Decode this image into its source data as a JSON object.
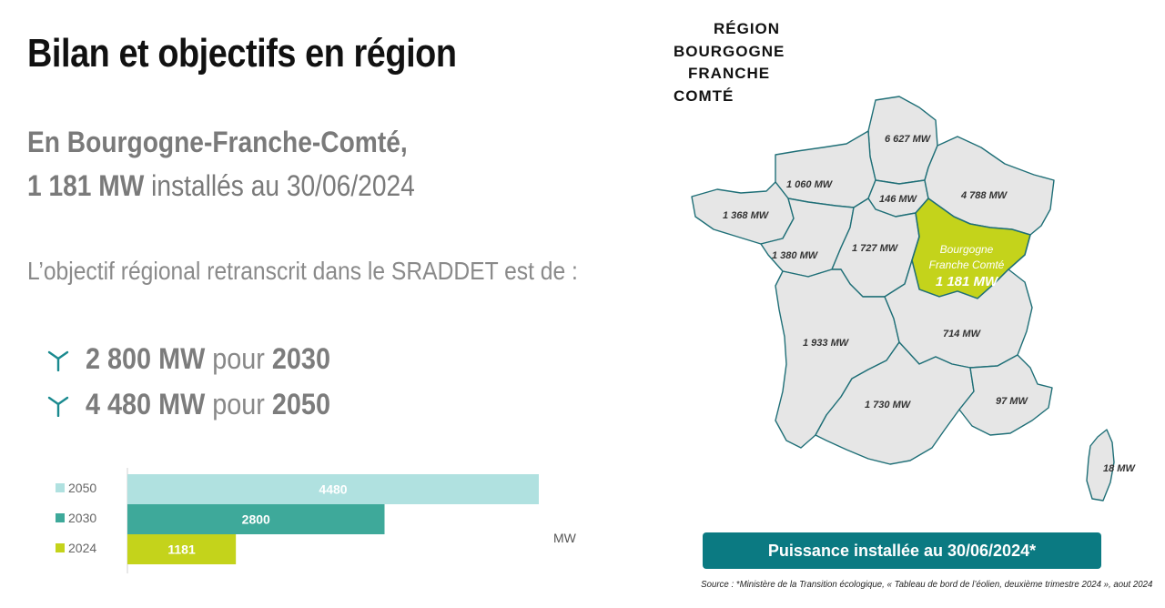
{
  "title": "Bilan et objectifs en région",
  "summary": {
    "line1": "En Bourgogne-Franche-Comté,",
    "installed": "1 181 MW",
    "line2_rest": " installés au 30/06/2024"
  },
  "objective_label": "L’objectif régional retranscrit dans le SRADDET est de :",
  "targets": [
    {
      "value": "2 800 MW",
      "connector": " pour ",
      "year": "2030",
      "icon": "wind-turbine-icon"
    },
    {
      "value": "4 480 MW",
      "connector": " pour ",
      "year": "2050",
      "icon": "wind-turbine-icon"
    }
  ],
  "logo": {
    "lines": [
      "RÉGION",
      "BOURGOGNE",
      "FRANCHE",
      "COMTÉ"
    ],
    "accent": "#f2c500"
  },
  "chart_data": {
    "type": "bar",
    "orientation": "horizontal",
    "categories": [
      "2050",
      "2030",
      "2024"
    ],
    "values": [
      4480,
      2800,
      1181
    ],
    "data_labels": [
      "4480",
      "2800",
      "1181"
    ],
    "colors": [
      "#b0e1e0",
      "#3ea99a",
      "#c4d31b"
    ],
    "unit_label": "MW",
    "xlim": [
      0,
      7000
    ],
    "legend": "left"
  },
  "map": {
    "highlight": {
      "name_line1": "Bourgogne",
      "name_line2": "Franche Comté",
      "value": "1 181 MW",
      "color": "#c4d31b"
    },
    "regions": [
      {
        "label": "6 627 MW"
      },
      {
        "label": "1 060 MW"
      },
      {
        "label": "146 MW"
      },
      {
        "label": "4 788 MW"
      },
      {
        "label": "1 368 MW"
      },
      {
        "label": "1 727 MW"
      },
      {
        "label": "1 380 MW"
      },
      {
        "label": "1 933 MW"
      },
      {
        "label": "714 MW"
      },
      {
        "label": "1 730 MW"
      },
      {
        "label": "97 MW"
      },
      {
        "label": "18 MW"
      }
    ],
    "fill": "#e6e6e6",
    "stroke": "#1f6f77"
  },
  "caption": "Puissance installée au 30/06/2024*",
  "source": "Source : *Ministère de la Transition écologique, « Tableau de bord de l’éolien, deuxième trimestre 2024 », aout 2024",
  "colors": {
    "accent": "#0b7a82",
    "lime": "#c4d31b",
    "teal": "#3ea99a",
    "light_teal": "#b0e1e0"
  }
}
